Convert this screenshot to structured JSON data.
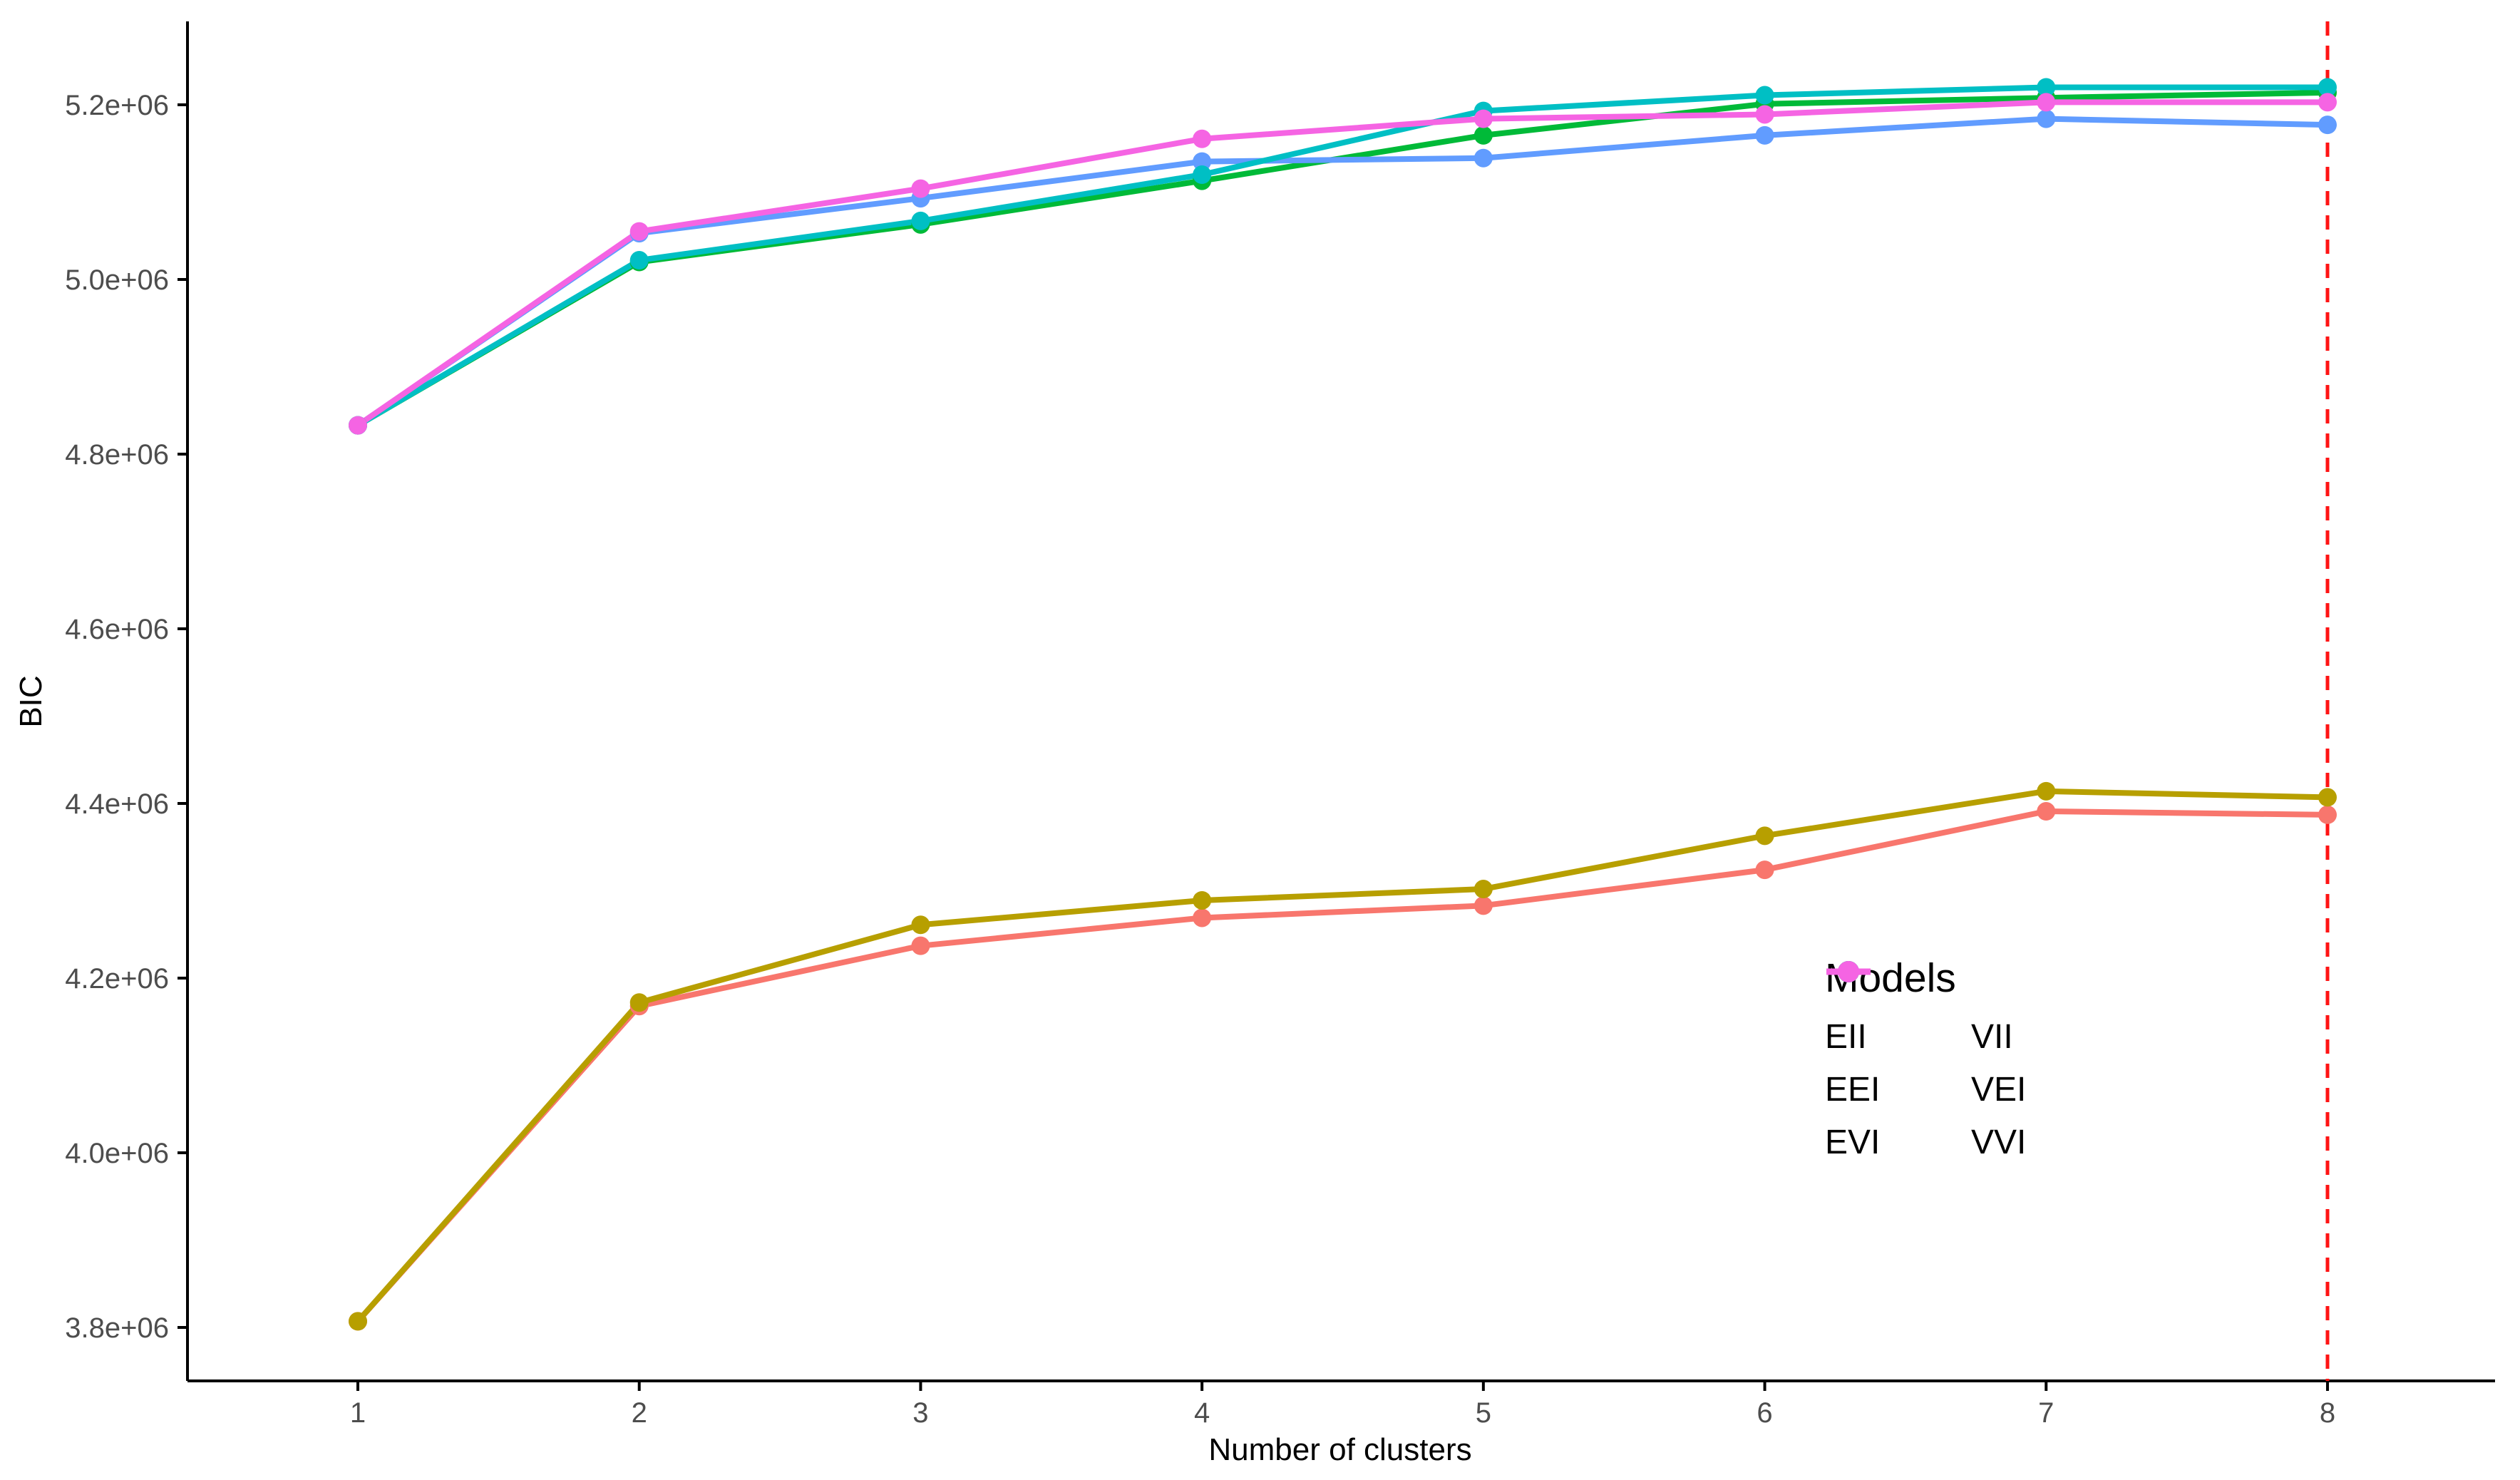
{
  "chart_data": {
    "type": "line",
    "title": "",
    "xlabel": "Number of clusters",
    "ylabel": "BIC",
    "x": [
      1,
      2,
      3,
      4,
      5,
      6,
      7,
      8
    ],
    "x_tick_labels": [
      "1",
      "2",
      "3",
      "4",
      "5",
      "6",
      "7",
      "8"
    ],
    "y_tick_values": [
      3800000,
      4000000,
      4200000,
      4400000,
      4600000,
      4800000,
      5000000,
      5200000
    ],
    "y_tick_labels": [
      "3.8e+06",
      "4.0e+06",
      "4.2e+06",
      "4.4e+06",
      "4.6e+06",
      "4.8e+06",
      "5.0e+06",
      "5.2e+06"
    ],
    "ylim": [
      3740000,
      5296000
    ],
    "grid": false,
    "axis_color": "#000000",
    "tick_label_color": "#4d4d4d",
    "series": [
      {
        "name": "EII",
        "color": "#F8766D",
        "values": [
          3807000,
          4168000,
          4237000,
          4269000,
          4283000,
          4324000,
          4391000,
          4387000
        ]
      },
      {
        "name": "EEI",
        "color": "#00BA38",
        "values": [
          4833000,
          5020000,
          5063000,
          5113000,
          5165000,
          5201000,
          5208000,
          5214000
        ]
      },
      {
        "name": "EVI",
        "color": "#619CFF",
        "values": [
          4833000,
          5053000,
          5093000,
          5135000,
          5139000,
          5165000,
          5184000,
          5177000
        ]
      },
      {
        "name": "VII",
        "color": "#B79F00",
        "values": [
          3807000,
          4172000,
          4261000,
          4289000,
          4302000,
          4363000,
          4414000,
          4407000
        ]
      },
      {
        "name": "VEI",
        "color": "#00BFC4",
        "values": [
          4833000,
          5022000,
          5067000,
          5120000,
          5193000,
          5211000,
          5220000,
          5220000
        ]
      },
      {
        "name": "VVI",
        "color": "#F564E3",
        "values": [
          4833000,
          5055000,
          5104000,
          5161000,
          5184000,
          5189000,
          5203000,
          5203000
        ]
      }
    ],
    "legend": {
      "title": "Models",
      "position": "inside bottom-right",
      "rows": [
        [
          "EII",
          "VII"
        ],
        [
          "EEI",
          "VEI"
        ],
        [
          "EVI",
          "VVI"
        ]
      ]
    },
    "vline": {
      "x": 8,
      "color": "#FF1414",
      "style": "dashed"
    }
  }
}
